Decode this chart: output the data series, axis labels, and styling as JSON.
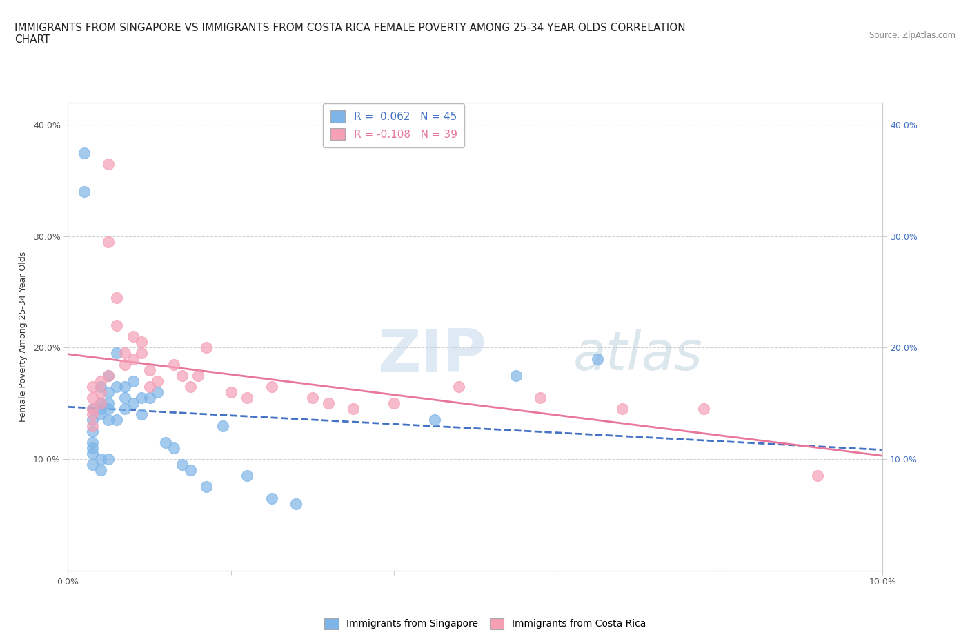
{
  "title": "IMMIGRANTS FROM SINGAPORE VS IMMIGRANTS FROM COSTA RICA FEMALE POVERTY AMONG 25-34 YEAR OLDS CORRELATION\nCHART",
  "source_text": "Source: ZipAtlas.com",
  "ylabel": "Female Poverty Among 25-34 Year Olds",
  "watermark": "ZIPatlas",
  "xlim": [
    0.0,
    0.1
  ],
  "ylim": [
    0.0,
    0.42
  ],
  "yticks": [
    0.1,
    0.2,
    0.3,
    0.4
  ],
  "ytick_labels": [
    "10.0%",
    "20.0%",
    "30.0%",
    "40.0%"
  ],
  "xticks": [
    0.0,
    0.02,
    0.04,
    0.06,
    0.08,
    0.1
  ],
  "xtick_labels": [
    "0.0%",
    "",
    "",
    "",
    "",
    "10.0%"
  ],
  "singapore_x": [
    0.002,
    0.002,
    0.003,
    0.003,
    0.003,
    0.003,
    0.003,
    0.003,
    0.003,
    0.004,
    0.004,
    0.004,
    0.004,
    0.004,
    0.004,
    0.005,
    0.005,
    0.005,
    0.005,
    0.005,
    0.005,
    0.006,
    0.006,
    0.006,
    0.007,
    0.007,
    0.007,
    0.008,
    0.008,
    0.009,
    0.009,
    0.01,
    0.011,
    0.012,
    0.013,
    0.014,
    0.015,
    0.017,
    0.019,
    0.022,
    0.025,
    0.028,
    0.045,
    0.055,
    0.065
  ],
  "singapore_y": [
    0.375,
    0.34,
    0.145,
    0.135,
    0.125,
    0.115,
    0.11,
    0.105,
    0.095,
    0.09,
    0.165,
    0.15,
    0.145,
    0.14,
    0.1,
    0.175,
    0.16,
    0.15,
    0.145,
    0.135,
    0.1,
    0.195,
    0.165,
    0.135,
    0.165,
    0.155,
    0.145,
    0.17,
    0.15,
    0.155,
    0.14,
    0.155,
    0.16,
    0.115,
    0.11,
    0.095,
    0.09,
    0.075,
    0.13,
    0.085,
    0.065,
    0.06,
    0.135,
    0.175,
    0.19
  ],
  "costarica_x": [
    0.003,
    0.003,
    0.003,
    0.003,
    0.003,
    0.004,
    0.004,
    0.004,
    0.005,
    0.005,
    0.005,
    0.006,
    0.006,
    0.007,
    0.007,
    0.008,
    0.008,
    0.009,
    0.009,
    0.01,
    0.01,
    0.011,
    0.013,
    0.014,
    0.015,
    0.016,
    0.017,
    0.02,
    0.022,
    0.025,
    0.03,
    0.032,
    0.035,
    0.04,
    0.048,
    0.058,
    0.068,
    0.078,
    0.092
  ],
  "costarica_y": [
    0.165,
    0.155,
    0.145,
    0.14,
    0.13,
    0.17,
    0.16,
    0.15,
    0.365,
    0.295,
    0.175,
    0.245,
    0.22,
    0.195,
    0.185,
    0.21,
    0.19,
    0.205,
    0.195,
    0.18,
    0.165,
    0.17,
    0.185,
    0.175,
    0.165,
    0.175,
    0.2,
    0.16,
    0.155,
    0.165,
    0.155,
    0.15,
    0.145,
    0.15,
    0.165,
    0.155,
    0.145,
    0.145,
    0.085
  ],
  "singapore_color": "#7eb5e8",
  "costarica_color": "#f5a0b5",
  "singapore_line_color": "#4472c4",
  "costarica_line_color": "#e8769a",
  "R_singapore": 0.062,
  "R_costarica": -0.108,
  "N_singapore": 45,
  "N_costarica": 39,
  "background_color": "#ffffff",
  "grid_color": "#cccccc",
  "title_fontsize": 11,
  "axis_label_fontsize": 9,
  "tick_fontsize": 9,
  "legend_R_color_singapore": "#4472c4",
  "legend_R_color_costarica": "#e8769a"
}
